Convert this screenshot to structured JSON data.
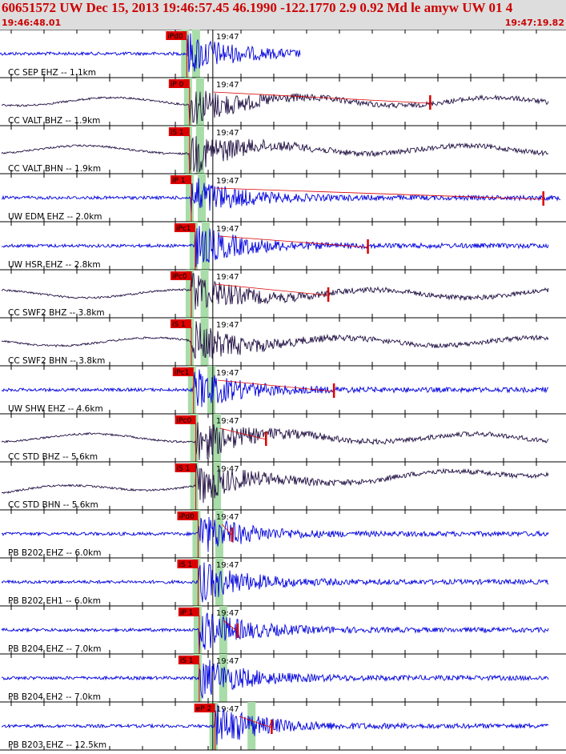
{
  "header": {
    "title": "60651572 UW Dec 15, 2013 19:46:57.45    46.1990 -122.1770  2.9 0.92 Md le amyw UW 01    4",
    "start_time": "19:46:48.01",
    "end_time": "19:47:19.82"
  },
  "minute_label": "19:47",
  "colors": {
    "trace_blue": "#0000dd",
    "trace_dark": "#221144",
    "pick_red": "#dd0000",
    "header_red": "#cc0000",
    "window_green": "#a8dca8",
    "header_bg": "#dddddd"
  },
  "traces": [
    {
      "label": "CC SEP EHZ -- 1.1km",
      "pick": "iPd0",
      "color": "blue",
      "p": 0.33,
      "s": 0.345
    },
    {
      "label": "CC VALT BHZ -- 1.9km",
      "pick": "iP 0",
      "color": "dark",
      "p": 0.335,
      "s": 0.352,
      "coda": 0.76
    },
    {
      "label": "CC VALT BHN -- 1.9km",
      "pick": "iS 1",
      "color": "dark",
      "p": 0.335,
      "s": 0.352
    },
    {
      "label": "UW EDM EHZ -- 2.0km",
      "pick": "iP 1",
      "color": "blue",
      "p": 0.338,
      "s": 0.355,
      "coda": 0.96
    },
    {
      "label": "UW HSR EHZ -- 2.8km",
      "pick": "iPc1",
      "color": "blue",
      "p": 0.345,
      "s": 0.362,
      "coda": 0.65
    },
    {
      "label": "CC SWF2 BHZ -- 3.8km",
      "pick": "iPc0",
      "color": "dark",
      "p": 0.338,
      "s": 0.36,
      "coda": 0.58
    },
    {
      "label": "CC SWF2 BHN -- 3.8km",
      "pick": "iS 1",
      "color": "dark",
      "p": 0.338,
      "s": 0.36
    },
    {
      "label": "UW SHW EHZ -- 4.6km",
      "pick": "iPc1",
      "color": "blue",
      "p": 0.342,
      "s": 0.372,
      "coda": 0.59
    },
    {
      "label": "CC STD BHZ -- 5.6km",
      "pick": "iPc0",
      "color": "dark",
      "p": 0.346,
      "s": 0.382,
      "coda": 0.47
    },
    {
      "label": "CC STD BHN -- 5.6km",
      "pick": "iS 1",
      "color": "dark",
      "p": 0.346,
      "s": 0.382
    },
    {
      "label": "PB B202 EHZ -- 6.0km",
      "pick": "iPd0",
      "color": "blue",
      "p": 0.35,
      "s": 0.386,
      "coda": 0.41
    },
    {
      "label": "PB B202 EH1 -- 6.0km",
      "pick": "iS 1",
      "color": "blue",
      "p": 0.35,
      "s": 0.386
    },
    {
      "label": "PB B204 EHZ -- 7.0km",
      "pick": "iP 1",
      "color": "blue",
      "p": 0.352,
      "s": 0.393,
      "coda": 0.42
    },
    {
      "label": "PB B204 EH2 -- 7.0km",
      "pick": "iS 1",
      "color": "blue",
      "p": 0.352,
      "s": 0.393
    },
    {
      "label": "PB B203 EHZ -- 12.5km",
      "pick": "eP 2",
      "color": "blue",
      "p": 0.38,
      "s": 0.443,
      "coda": 0.48
    }
  ]
}
